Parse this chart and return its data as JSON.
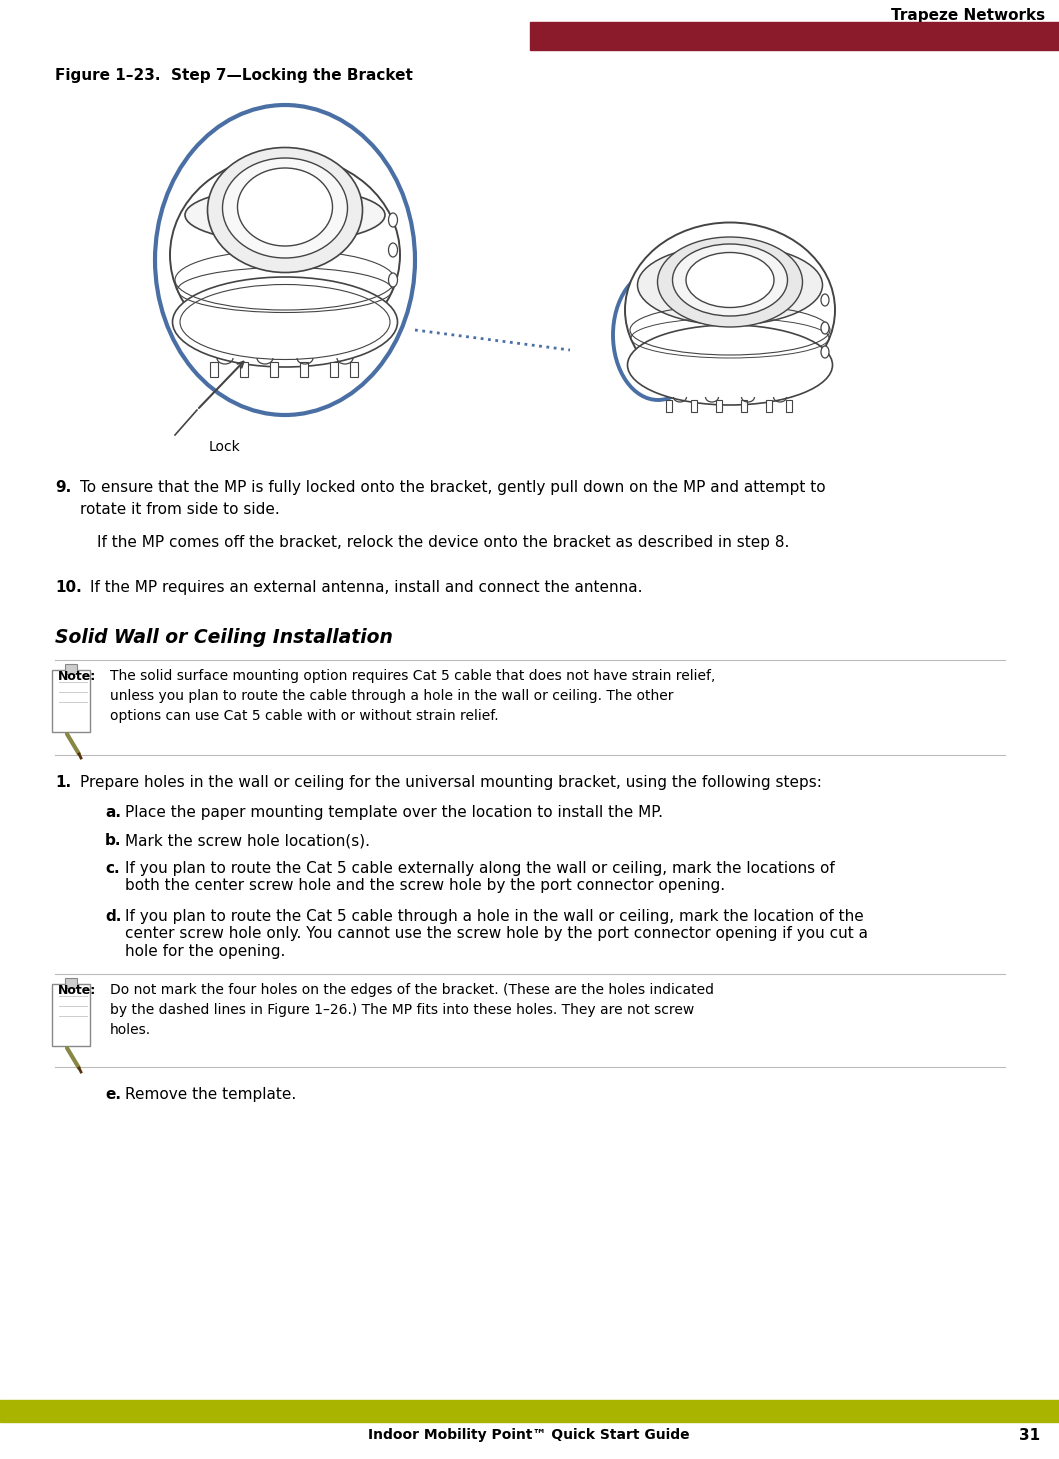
{
  "page_title": "Trapeze Networks",
  "footer_text": "Indoor Mobility Point™ Quick Start Guide",
  "page_number": "31",
  "figure_caption": "Figure 1–23.  Step 7—Locking the Bracket",
  "header_bar_color": "#8B1A2A",
  "footer_bar_color": "#A8B400",
  "body_bg": "#FFFFFF",
  "section_heading": "Solid Wall or Ceiling Installation",
  "note1_text": "The solid surface mounting option requires Cat 5 cable that does not have strain relief,\nunless you plan to route the cable through a hole in the wall or ceiling. The other\noptions can use Cat 5 cable with or without strain relief.",
  "note2_text": "Do not mark the four holes on the edges of the bracket. (These are the holes indicated\nby the dashed lines in Figure 1–26.) The MP fits into these holes. They are not screw\nholes.",
  "sub_items": [
    {
      "label": "a.",
      "text": "Place the paper mounting template over the location to install the MP."
    },
    {
      "label": "b.",
      "text": "Mark the screw hole location(s)."
    },
    {
      "label": "c.",
      "text": "If you plan to route the Cat 5 cable externally along the wall or ceiling, mark the locations of\nboth the center screw hole and the screw hole by the port connector opening."
    },
    {
      "label": "d.",
      "text": "If you plan to route the Cat 5 cable through a hole in the wall or ceiling, mark the location of the\ncenter screw hole only. You cannot use the screw hole by the port connector opening if you cut a\nhole for the opening."
    },
    {
      "label": "e.",
      "text": "Remove the template."
    }
  ],
  "step1_text": "Prepare holes in the wall or ceiling for the universal mounting bracket, using the following steps:",
  "step9_line1": "To ensure that the MP is fully locked onto the bracket, gently pull down on the MP and attempt to",
  "step9_line2": "rotate it from side to side.",
  "step9_sub": "If the MP comes off the bracket, relock the device onto the bracket as described in step 8.",
  "step10_text": "If the MP requires an external antenna, install and connect the antenna.",
  "blue_color": "#4A6FA5",
  "line_color": "#BBBBBB",
  "device_line": "#444444",
  "lock_text": "Lock"
}
